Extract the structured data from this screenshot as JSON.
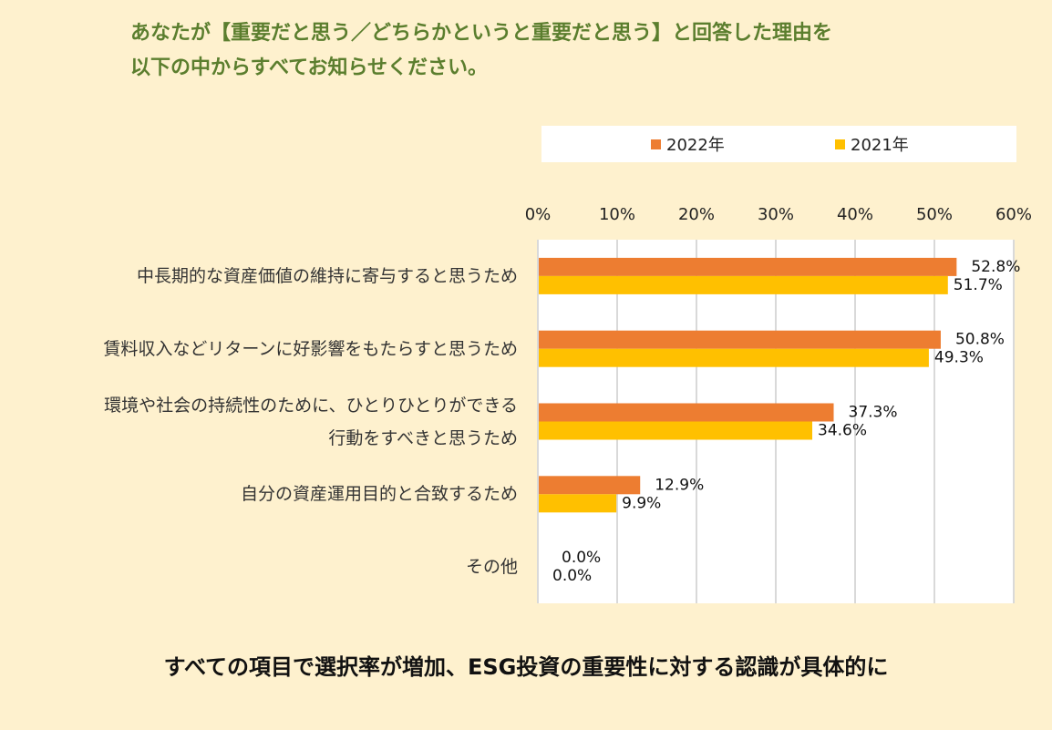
{
  "question": {
    "line1": "あなたが【重要だと思う／どちらかというと重要だと思う】と回答した理由を",
    "line2": "以下の中からすべてお知らせください。"
  },
  "caption": "すべての項目で選択率が増加、ESG投資の重要性に対する認識が具体的に",
  "colors": {
    "series_2022": "#ED7D31",
    "series_2021": "#FFC000",
    "background": "#FEF1CE",
    "title": "#5B7E2E"
  },
  "chart_data": {
    "type": "bar",
    "orientation": "horizontal",
    "title": "",
    "categories": [
      [
        "中長期的な資産価値の維持に寄与すると思うため"
      ],
      [
        "賃料収入などリターンに好影響をもたらすと思うため"
      ],
      [
        "環境や社会の持続性のために、ひとりひとりができる",
        "行動をすべきと思うため"
      ],
      [
        "自分の資産運用目的と合致するため"
      ],
      [
        "その他"
      ]
    ],
    "series": [
      {
        "name": "2022年",
        "values": [
          52.8,
          50.8,
          37.3,
          12.9,
          0.0
        ],
        "labels": [
          "52.8%",
          "50.8%",
          "37.3%",
          "12.9%",
          "0.0%"
        ]
      },
      {
        "name": "2021年",
        "values": [
          51.7,
          49.3,
          34.6,
          9.9,
          0.0
        ],
        "labels": [
          "51.7%",
          "49.3%",
          "34.6%",
          "9.9%",
          "0.0%"
        ]
      }
    ],
    "xlim": [
      0,
      60
    ],
    "xticks": [
      "0%",
      "10%",
      "20%",
      "30%",
      "40%",
      "50%",
      "60%"
    ],
    "grid": true,
    "legend_position": "top"
  }
}
